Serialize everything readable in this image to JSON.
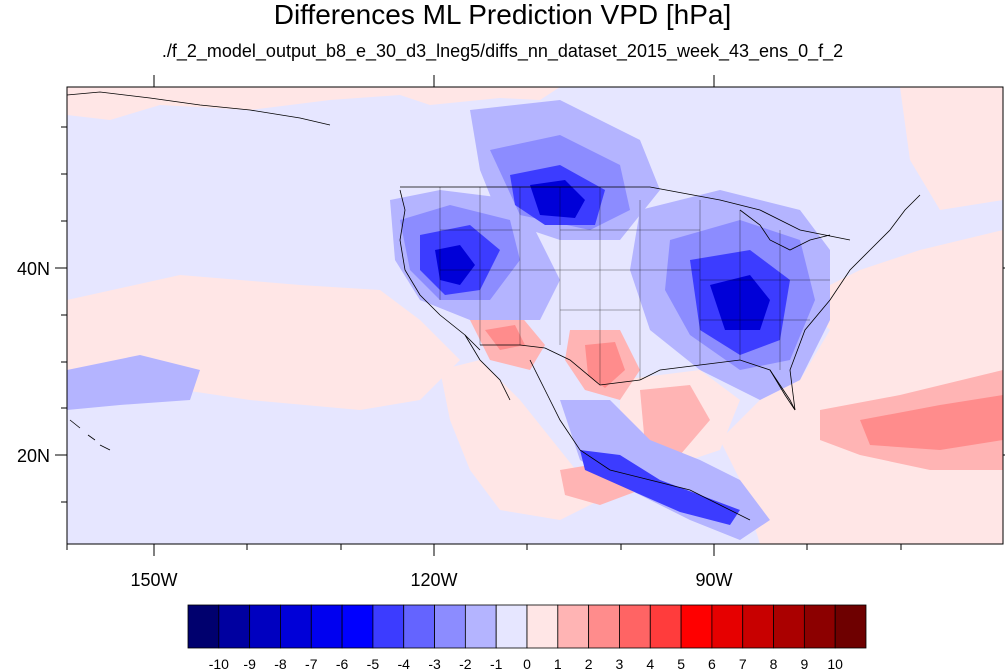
{
  "title": "Differences ML Prediction VPD [hPa]",
  "subtitle": "./f_2_model_output_b8_e_30_d3_lneg5/diffs_nn_dataset_2015_week_43_ens_0_f_2",
  "lon_labels": [
    "150W",
    "120W",
    "90W"
  ],
  "lat_labels": [
    "40N",
    "20N"
  ],
  "colorbar": {
    "labels": [
      "-10",
      "-9",
      "-8",
      "-7",
      "-6",
      "-5",
      "-4",
      "-3",
      "-2",
      "-1",
      "0",
      "1",
      "2",
      "3",
      "4",
      "5",
      "6",
      "7",
      "8",
      "9",
      "10"
    ],
    "colors": [
      "#00006e",
      "#0000a0",
      "#0000c0",
      "#0000d8",
      "#0000f0",
      "#0000ff",
      "#3c3cff",
      "#6464ff",
      "#8c8cff",
      "#b4b4ff",
      "#e6e6ff",
      "#ffe6e6",
      "#ffb4b4",
      "#ff8c8c",
      "#ff6464",
      "#ff3c3c",
      "#ff0000",
      "#e60000",
      "#c80000",
      "#aa0000",
      "#8c0000",
      "#6e0000"
    ]
  }
}
